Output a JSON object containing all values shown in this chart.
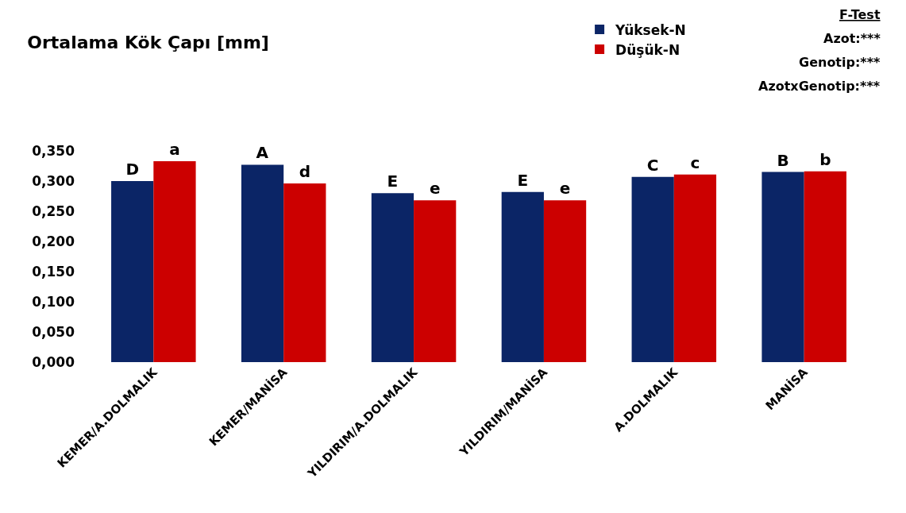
{
  "chart_data": {
    "type": "bar",
    "title": "Ortalama Kök Çapı [mm]",
    "categories": [
      "KEMER/A.DOLMALIK",
      "KEMER/MANİSA",
      "YILDIRIM/A.DOLMALIK",
      "YILDIRIM/MANİSA",
      "A.DOLMALIK",
      "MANİSA"
    ],
    "series": [
      {
        "name": "Yüksek-N",
        "color": "#0b2566",
        "values": [
          0.3,
          0.327,
          0.28,
          0.282,
          0.307,
          0.315
        ],
        "value_labels": [
          "D",
          "A",
          "E",
          "E",
          "C",
          "B"
        ]
      },
      {
        "name": "Düşük-N",
        "color": "#cc0000",
        "values": [
          0.333,
          0.296,
          0.268,
          0.268,
          0.311,
          0.316
        ],
        "value_labels": [
          "a",
          "d",
          "e",
          "e",
          "c",
          "b"
        ]
      }
    ],
    "ylim": [
      0,
      0.35
    ],
    "yticks": [
      {
        "value": 0,
        "label": "0,000"
      },
      {
        "value": 0.05,
        "label": "0,050"
      },
      {
        "value": 0.1,
        "label": "0,100"
      },
      {
        "value": 0.15,
        "label": "0,150"
      },
      {
        "value": 0.2,
        "label": "0,200"
      },
      {
        "value": 0.25,
        "label": "0,250"
      },
      {
        "value": 0.3,
        "label": "0,300"
      },
      {
        "value": 0.35,
        "label": "0,350"
      }
    ],
    "legend": "top right",
    "annotations": [
      "F-Test",
      "Azot:***",
      "Genotip:***",
      "AzotxGenotip:***"
    ]
  }
}
